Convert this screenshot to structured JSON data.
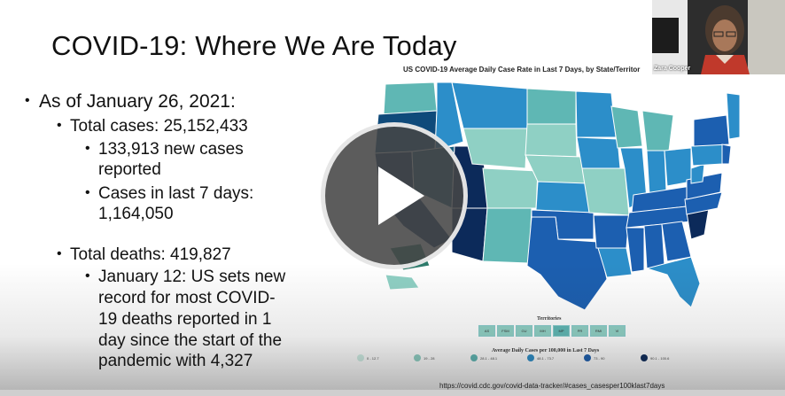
{
  "slide": {
    "title": "COVID-19: Where We Are Today",
    "bullets": [
      {
        "level": 1,
        "text": "As of January 26, 2021:"
      },
      {
        "level": 2,
        "text": "Total cases: 25,152,433"
      },
      {
        "level": 3,
        "text": "133,913 new cases"
      },
      {
        "level": 0,
        "text": "reported"
      },
      {
        "level": 3,
        "text": "Cases in last 7 days:"
      },
      {
        "level": 0,
        "text": "1,164,050"
      },
      {
        "level": 2,
        "text": "Total deaths: 419,827"
      },
      {
        "level": 3,
        "text": "January 12: US sets new"
      },
      {
        "level": 0,
        "text": "record for most COVID-"
      },
      {
        "level": 0,
        "text": "19 deaths reported in 1"
      },
      {
        "level": 0,
        "text": "day since the start of the"
      },
      {
        "level": 0,
        "text": "pandemic with 4,327"
      }
    ]
  },
  "map": {
    "title": "US COVID-19 Average Daily Case Rate in Last 7 Days, by State/Territor",
    "territories_title": "Territories",
    "territories": [
      "AS",
      "FSM",
      "GU",
      "MH",
      "MP",
      "PR",
      "RMI",
      "VI"
    ],
    "legend_title": "Average Daily Cases per 100,000 in Last 7 Days",
    "legend": [
      {
        "label": "0 - 12.7",
        "color": "#cfeee5"
      },
      {
        "label": "19 - 28",
        "color": "#8fd0c4"
      },
      {
        "label": "28.1 - 48.1",
        "color": "#5fb7b4"
      },
      {
        "label": "48.1 - 73.7",
        "color": "#2c8ec9"
      },
      {
        "label": "73 - 90",
        "color": "#1c5fb0"
      },
      {
        "label": "90.1 - 100.6",
        "color": "#0c2a5a"
      }
    ],
    "source_url": "https://covid.cdc.gov/covid-data-tracker/#cases_casesper100klast7days"
  },
  "video": {
    "presenter_name": "Zara Cooper"
  },
  "colors": {
    "play_bg": "#464646",
    "map_light": "#8fd0c4",
    "map_mid": "#2c8ec9",
    "map_dark": "#0c2a5a"
  },
  "icons": {
    "play": "play-icon"
  }
}
